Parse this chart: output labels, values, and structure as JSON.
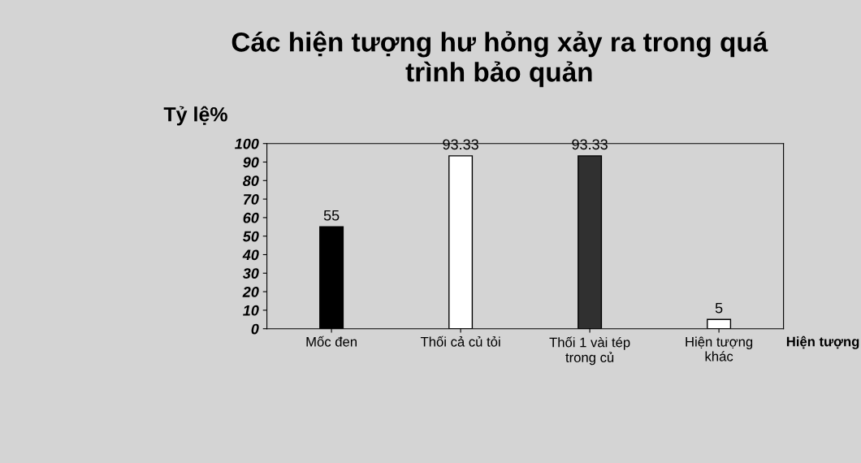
{
  "chart_data": {
    "type": "bar",
    "title": "Các hiện tượng hư hỏng xảy ra trong quá\ntrình bảo quản",
    "ylabel": "Tỷ lệ%",
    "xlabel": "Hiện tượng",
    "categories": [
      "Mốc đen",
      "Thối cả củ tỏi",
      "Thối 1 vài tép\ntrong củ",
      "Hiện tượng\nkhác"
    ],
    "values": [
      55,
      93.33,
      93.33,
      5
    ],
    "colors": [
      "#000000",
      "#ffffff",
      "#303030",
      "#ffffff"
    ],
    "ylim": [
      0,
      100
    ],
    "yticks": [
      0,
      10,
      20,
      30,
      40,
      50,
      60,
      70,
      80,
      90,
      100
    ],
    "data_labels": true,
    "grid": false,
    "legend": false
  }
}
